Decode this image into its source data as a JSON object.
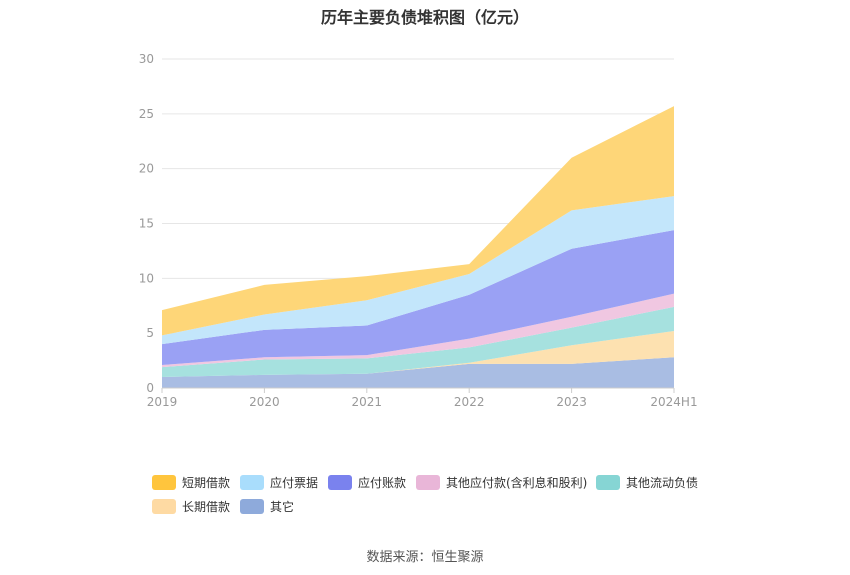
{
  "title": "历年主要负债堆积图（亿元）",
  "source_text": "数据来源：恒生聚源",
  "chart_data": {
    "type": "area",
    "stacked": true,
    "categories": [
      "2019",
      "2020",
      "2021",
      "2022",
      "2023",
      "2024H1"
    ],
    "ylim": [
      0,
      30
    ],
    "yticks": [
      "0",
      "5",
      "10",
      "15",
      "20",
      "25",
      "30"
    ],
    "series": [
      {
        "name": "其它",
        "color": "#a9bde3",
        "values": [
          1.0,
          1.2,
          1.3,
          2.2,
          2.2,
          2.8
        ]
      },
      {
        "name": "长期借款",
        "color": "#fde1b0",
        "values": [
          0.0,
          0.0,
          0.0,
          0.1,
          1.7,
          2.4
        ]
      },
      {
        "name": "其他流动负债",
        "color": "#a6e1df",
        "values": [
          0.9,
          1.4,
          1.4,
          1.4,
          1.6,
          2.2
        ]
      },
      {
        "name": "其他应付款(含利息和股利)",
        "color": "#f0c7e1",
        "values": [
          0.2,
          0.2,
          0.3,
          0.8,
          1.0,
          1.2
        ]
      },
      {
        "name": "应付账款",
        "color": "#9aa1f4",
        "values": [
          1.9,
          2.5,
          2.7,
          4.0,
          6.2,
          5.8
        ]
      },
      {
        "name": "应付票据",
        "color": "#c3e6fb",
        "values": [
          0.8,
          1.4,
          2.3,
          1.9,
          3.5,
          3.1
        ]
      },
      {
        "name": "短期借款",
        "color": "#fed678",
        "values": [
          2.3,
          2.7,
          2.2,
          0.9,
          4.8,
          8.2
        ]
      }
    ],
    "legend": [
      {
        "label": "短期借款",
        "color": "#ffc53d"
      },
      {
        "label": "应付票据",
        "color": "#a9ddfc"
      },
      {
        "label": "应付账款",
        "color": "#7a82ee"
      },
      {
        "label": "其他应付款(含利息和股利)",
        "color": "#e9b6d8"
      },
      {
        "label": "其他流动负债",
        "color": "#86d5d4"
      },
      {
        "label": "长期借款",
        "color": "#fedaa3"
      },
      {
        "label": "其它",
        "color": "#8eaadb"
      }
    ],
    "legend_position": "bottom",
    "grid": true
  }
}
